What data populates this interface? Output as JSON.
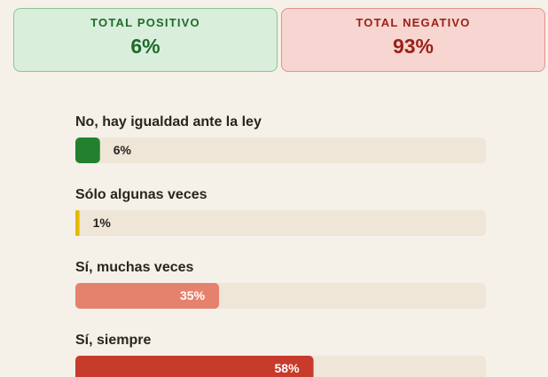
{
  "summary": [
    {
      "label": "TOTAL POSITIVO",
      "value": "6%"
    },
    {
      "label": "TOTAL NEGATIVO",
      "value": "93%"
    }
  ],
  "chart_data": {
    "type": "hbar",
    "categories": [
      "No, hay igualdad ante la ley",
      "Sólo algunas veces",
      "Sí, muchas veces",
      "Sí, siempre"
    ],
    "values": [
      6,
      1,
      35,
      58
    ],
    "value_labels": [
      "6%",
      "1%",
      "35%",
      "58%"
    ],
    "colors": [
      "#23802f",
      "#e6b800",
      "#e5826e",
      "#c63b2b"
    ],
    "xlim": [
      0,
      100
    ]
  }
}
